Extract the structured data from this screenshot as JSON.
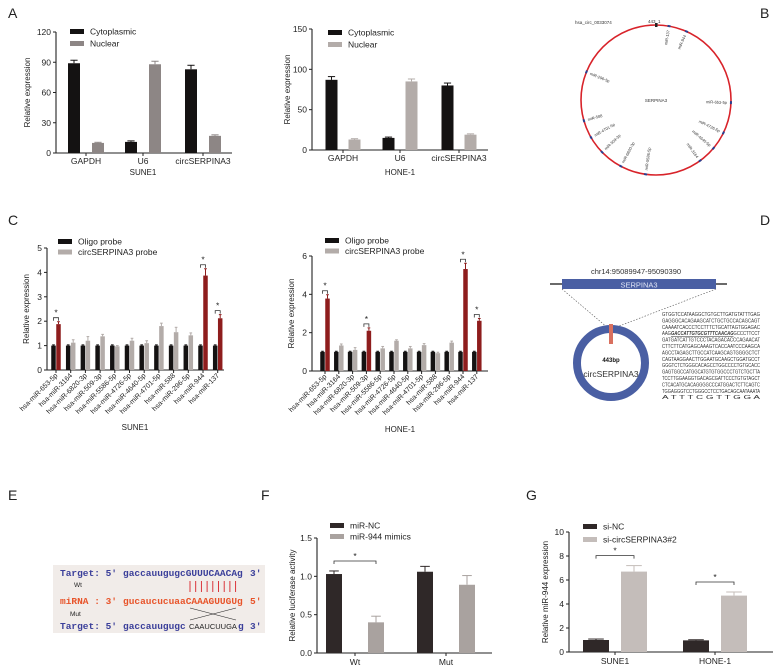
{
  "panels": {
    "A": "A",
    "B": "B",
    "C": "C",
    "D": "D",
    "E": "E",
    "F": "F",
    "G": "G"
  },
  "colors": {
    "black": "#141212",
    "dark": "#2f2828",
    "grey_a1": "#8d8685",
    "grey": "#b3aca9",
    "red": "#8e1d1d",
    "circle_red": "#d8232a",
    "blue": "#4a5fa3",
    "seq_blue": "#3b3f9a",
    "seq_red": "#e8542a"
  },
  "chart_data": [
    {
      "type": "bar",
      "ylabel": "Relative expression",
      "xlabel": "SUNE1",
      "ylim": [
        0,
        120
      ],
      "yticks": [
        "0",
        "30",
        "60",
        "90",
        "120"
      ],
      "categories": [
        "GAPDH",
        "U6",
        "circSERPINA3"
      ],
      "series": [
        {
          "name": "Cytoplasmic",
          "color": "#141212",
          "values": [
            89,
            11,
            83
          ],
          "errors": [
            3,
            1,
            4
          ]
        },
        {
          "name": "Nuclear",
          "color": "#8d8685",
          "values": [
            10,
            88,
            17
          ],
          "errors": [
            0.6,
            3,
            1
          ]
        }
      ],
      "significance": [],
      "legend": "top-left"
    },
    {
      "type": "bar",
      "ylabel": "Relative expression",
      "xlabel": "HONE-1",
      "ylim": [
        0,
        150
      ],
      "yticks": [
        "0",
        "50",
        "100",
        "150"
      ],
      "categories": [
        "GAPDH",
        "U6",
        "circSERPINA3"
      ],
      "series": [
        {
          "name": "Cytoplasmic",
          "color": "#141212",
          "values": [
            87,
            15,
            80
          ],
          "errors": [
            4,
            1,
            3
          ]
        },
        {
          "name": "Nuclear",
          "color": "#b3aca9",
          "values": [
            13,
            85,
            19
          ],
          "errors": [
            1,
            3,
            1
          ]
        }
      ],
      "significance": [],
      "legend": "top-left"
    },
    {
      "type": "bar",
      "ylabel": "Relative expression",
      "xlabel": "SUNE1",
      "ylim": [
        0,
        5
      ],
      "yticks": [
        "0",
        "1",
        "2",
        "3",
        "4",
        "5"
      ],
      "categories": [
        "hsa-miR-653-5p",
        "hsa-miR-3164",
        "hsa-miR-6820-3p",
        "hsa-miR-509-3p",
        "hsa-miR-5586-5p",
        "hsa-miR-4726-5p",
        "hsa-miR-4640-5p",
        "hsa-miR-4701-5p",
        "hsa-miR-588",
        "hsa-miR-296-5p",
        "hsa-miR-944",
        "hsa-miR-137"
      ],
      "series": [
        {
          "name": "Oligo probe",
          "color": "#141212",
          "values": [
            1,
            1,
            1,
            1,
            1,
            1,
            1,
            1,
            1,
            1,
            1,
            1
          ],
          "errors": [
            0.03,
            0.03,
            0.03,
            0.03,
            0.03,
            0.03,
            0.03,
            0.03,
            0.03,
            0.03,
            0.03,
            0.03
          ]
        },
        {
          "name": "circSERPINA3 probe",
          "color": "#b3aca9",
          "highlight_color": "#8e1d1d",
          "values": [
            1.88,
            1.12,
            1.2,
            1.38,
            0.97,
            1.2,
            1.1,
            1.8,
            1.55,
            1.42,
            3.87,
            2.12
          ],
          "errors": [
            0.1,
            0.12,
            0.17,
            0.08,
            0.03,
            0.1,
            0.1,
            0.12,
            0.2,
            0.1,
            0.28,
            0.15
          ]
        }
      ],
      "significance": [
        0,
        10,
        11
      ],
      "sig_label": "*",
      "legend": "top-left"
    },
    {
      "type": "bar",
      "ylabel": "Relative expression",
      "xlabel": "HONE-1",
      "ylim": [
        0,
        6
      ],
      "yticks": [
        "0",
        "2",
        "4",
        "6"
      ],
      "categories": [
        "hsa-miR-653-5p",
        "hsa-miR-3164",
        "hsa-miR-6820-3p",
        "hsa-miR-509-3p",
        "hsa-miR-5586-5p",
        "hsa-miR-4726-5p",
        "hsa-miR-4640-5p",
        "hsa-miR-4701-5p",
        "hsa-miR-588",
        "hsa-miR-296-5p",
        "hsa-miR-944",
        "hsa-miR-137"
      ],
      "series": [
        {
          "name": "Oligo probe",
          "color": "#141212",
          "values": [
            1,
            1,
            1,
            1,
            1,
            1,
            1,
            1,
            1,
            1,
            1,
            1
          ],
          "errors": [
            0.03,
            0.03,
            0.03,
            0.03,
            0.03,
            0.03,
            0.03,
            0.03,
            0.03,
            0.03,
            0.03,
            0.03
          ]
        },
        {
          "name": "circSERPINA3 probe",
          "color": "#b3aca9",
          "highlight_color": "#8e1d1d",
          "values": [
            3.78,
            1.33,
            1.1,
            2.1,
            1.18,
            1.58,
            1.18,
            1.35,
            0.93,
            1.48,
            5.32,
            2.62
          ],
          "errors": [
            0.2,
            0.08,
            0.12,
            0.15,
            0.1,
            0.05,
            0.1,
            0.08,
            0.05,
            0.08,
            0.3,
            0.12
          ]
        }
      ],
      "significance": [
        0,
        3,
        10,
        11
      ],
      "sig_label": "*",
      "legend": "top-left"
    },
    {
      "type": "bar",
      "ylabel": "Relative luciferase activity",
      "xlabel": "",
      "ylim": [
        0,
        1.5
      ],
      "yticks": [
        "0.0",
        "0.5",
        "1.0",
        "1.5"
      ],
      "categories": [
        "Wt",
        "Mut"
      ],
      "series": [
        {
          "name": "miR-NC",
          "color": "#2f2828",
          "values": [
            1.03,
            1.06
          ],
          "errors": [
            0.04,
            0.07
          ]
        },
        {
          "name": "miR-944 mimics",
          "color": "#a9a29f",
          "values": [
            0.4,
            0.89
          ],
          "errors": [
            0.08,
            0.12
          ]
        }
      ],
      "significance": [
        0
      ],
      "sig_label": "*",
      "legend": "top-left"
    },
    {
      "type": "bar",
      "ylabel": "Relative miR-944 expression",
      "xlabel": "",
      "ylim": [
        0,
        10
      ],
      "yticks": [
        "0",
        "2",
        "4",
        "6",
        "8",
        "10"
      ],
      "categories": [
        "SUNE1",
        "HONE-1"
      ],
      "series": [
        {
          "name": "si-NC",
          "color": "#2f2828",
          "values": [
            1.0,
            0.97
          ],
          "errors": [
            0.08,
            0.05
          ]
        },
        {
          "name": "si-circSERPINA3#2",
          "color": "#c4bdba",
          "values": [
            6.7,
            4.7
          ],
          "errors": [
            0.5,
            0.3
          ]
        }
      ],
      "significance": [
        0,
        1
      ],
      "sig_label": "*",
      "legend": "top-left"
    }
  ],
  "circ_map": {
    "title": "hsa_circ_0033074",
    "start_label": "443_1",
    "center_label": "SERPINA3",
    "sites": [
      "miR-944",
      "miR-137",
      "miR-296-5p",
      "miR-653-5p",
      "miR-509-3p",
      "miR-4701-5p",
      "miR-6820-3p",
      "miR-5586-5p",
      "miR-4726-5p",
      "miR-4640-5p",
      "miR-3164",
      "miR-588"
    ]
  },
  "gene_diagram": {
    "coords": "chr14:95089947-95090390",
    "gene": "SERPINA3",
    "size": "443bp",
    "circ_name": "circSERPINA3",
    "sequence": [
      {
        "pre": "GTGGTCCATAAGGCTGTGCTTGATGTATTTGAG",
        "hl": "",
        "post": ""
      },
      {
        "pre": "GAGGGCACAGAAGCATCTGCTGCCACAGCAGT",
        "hl": "",
        "post": ""
      },
      {
        "pre": "CAAAATCACCCTCCTTTCTGCATTAGTGGAGAC",
        "hl": "",
        "post": ""
      },
      {
        "pre": "AAG",
        "hl": "GACCATTGTGCGTTTCAACAG",
        "post": "GCCCTTCCT"
      },
      {
        "pre": "GATGATCATTGTCCCTACAGACACCCAGAACAT",
        "hl": "",
        "post": ""
      },
      {
        "pre": "CTTCTTCATGAGCAAAGTCACCAATCCCAAGCA",
        "hl": "",
        "post": ""
      },
      {
        "pre": "AGCCTAGAGCTTGCCATCAAGCAGTGGGGCTCT",
        "hl": "",
        "post": ""
      },
      {
        "pre": "CAGTAAGGAACTTGGAATGCAAGCTGGATGCCT",
        "hl": "",
        "post": ""
      },
      {
        "pre": "GGGTCTCTGGGCACAGCCTGGCCCCTGTGCACC",
        "hl": "",
        "post": ""
      },
      {
        "pre": "GAGTGGCCATGGCATGTGTGGCCCTGTCTGCTTA",
        "hl": "",
        "post": ""
      },
      {
        "pre": "TCCTTGGAAGGTGACAGCGATTCCCTGTGTAGCT",
        "hl": "",
        "post": ""
      },
      {
        "pre": "CTCACATGCACAGGGGCCCATGGACTCTTCAGTC",
        "hl": "",
        "post": ""
      },
      {
        "pre": "TGGAGGGTCCTGGGCCTCCTGACAGCAATAAATA",
        "hl": "",
        "post": ""
      },
      {
        "pre": "A   T   T   T   C   G   T   T   G   G   A",
        "hl": "",
        "post": ""
      }
    ]
  },
  "binding": {
    "wt_label": "Wt",
    "mut_label": "Mut",
    "target_prefix": "Target: 5'",
    "target_lower": "gaccauugugc",
    "target_site": "GUUUCAACAg",
    "target_end": "3'",
    "mirna_prefix": "miRNA : 3'",
    "mirna_lower": "gucaucucuaa",
    "mirna_site": "CAAAGUUGUg",
    "mirna_end": "5'",
    "mut_prefix": "Target: 5'",
    "mut_lower": "gaccauugugc",
    "mut_site": "CAAUCUUGA",
    "mut_g": "g",
    "mut_end": "3'"
  }
}
